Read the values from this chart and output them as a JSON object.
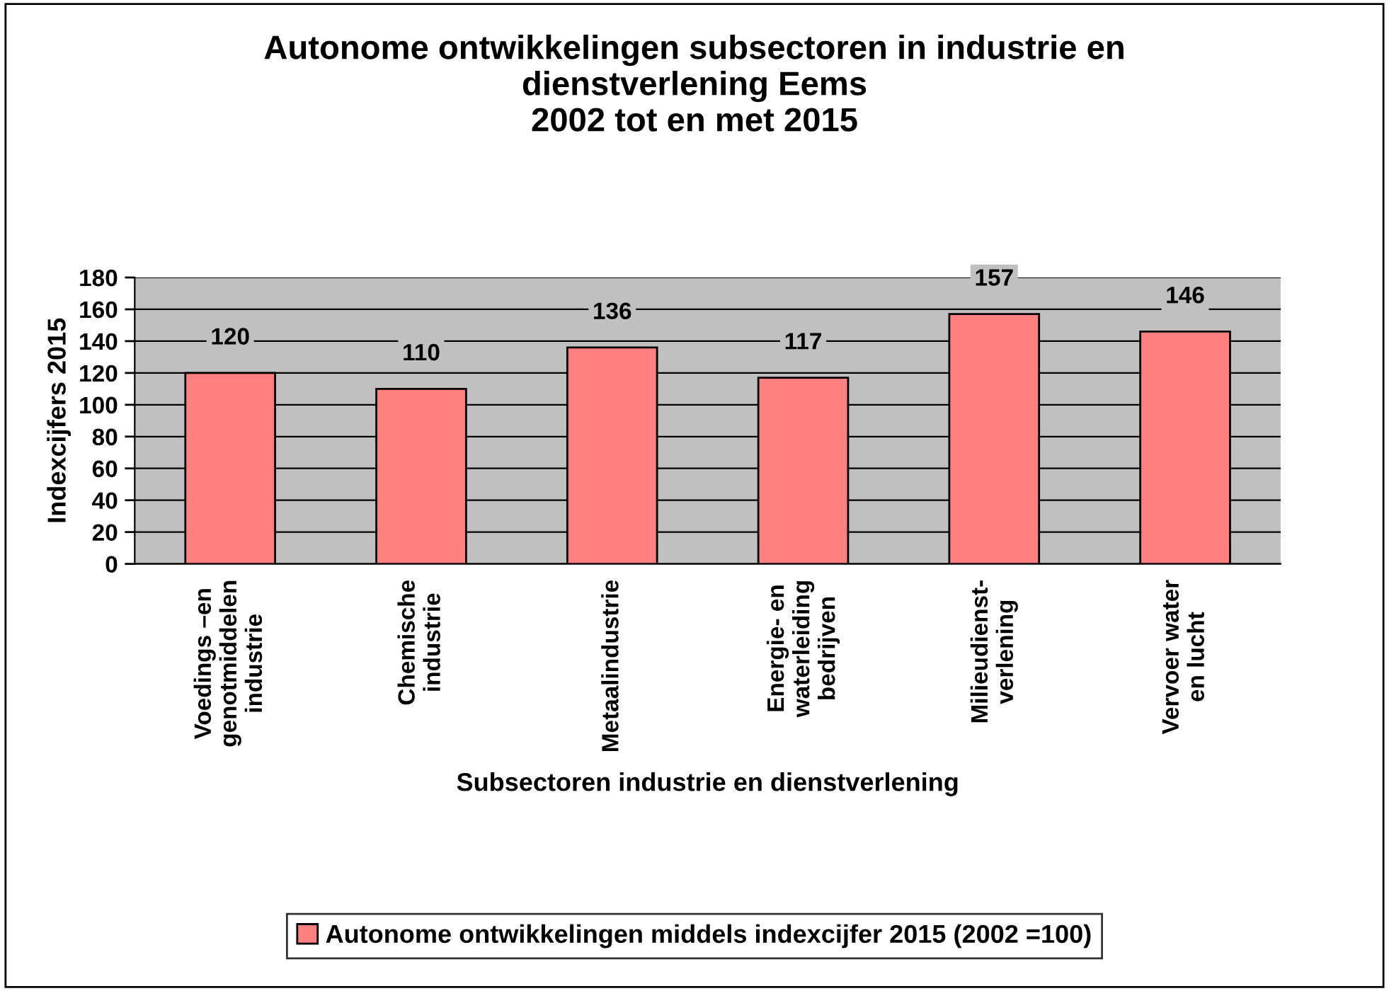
{
  "chart_data": {
    "type": "bar",
    "title": "Autonome ontwikkelingen subsectoren in industrie en\ndienstverlening Eems\n2002 tot en met 2015",
    "xlabel": "Subsectoren industrie en dienstverlening",
    "ylabel": "Indexcijfers 2015",
    "categories": [
      "Voedings –en\ngenotmiddelen\nindustrie",
      "Chemische\nindustrie",
      "Metaalindustrie",
      "Energie- en\nwaterleiding\nbedrijven",
      "Milieudienst-\nverlening",
      "Vervoer water\nen lucht"
    ],
    "series": [
      {
        "name": "Autonome ontwikkelingen middels indexcijfer 2015 (2002 =100)",
        "color": "#ff8080",
        "values": [
          120,
          110,
          136,
          117,
          157,
          146
        ]
      }
    ],
    "ylim": [
      0,
      180
    ],
    "yticks": [
      0,
      20,
      40,
      60,
      80,
      100,
      120,
      140,
      160,
      180
    ],
    "grid": "y",
    "legend": "bottom",
    "data_labels": true
  }
}
